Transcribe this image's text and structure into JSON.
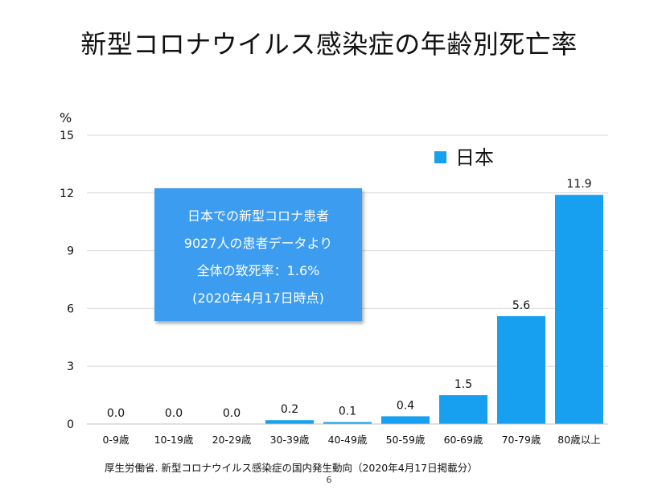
{
  "title": "新型コロナウイルス感染症の年齢別死亡率",
  "source": "厚生労働省. 新型コロナウイルス感染症の国内発生動向（2020年4月17日掲載分）",
  "page_number": "6",
  "note": {
    "lines": [
      "日本での新型コロナ患者",
      "9027人の患者データより",
      "全体の致死率：1.6%",
      "(2020年4月17日時点)"
    ]
  },
  "colors": {
    "bar": "#16a0ef",
    "note_bg": "#3c9cf0"
  },
  "chart_data": {
    "type": "bar",
    "title": "",
    "ylabel": "%",
    "xlabel": "",
    "ylim": [
      0,
      15
    ],
    "yticks": [
      0,
      3,
      6,
      9,
      12,
      15
    ],
    "grid": true,
    "legend_position": "top-right",
    "categories": [
      "0-9歳",
      "10-19歳",
      "20-29歳",
      "30-39歳",
      "40-49歳",
      "50-59歳",
      "60-69歳",
      "70-79歳",
      "80歳以上"
    ],
    "series": [
      {
        "name": "日本",
        "values": [
          0.0,
          0.0,
          0.0,
          0.2,
          0.1,
          0.4,
          1.5,
          5.6,
          11.9
        ],
        "labels": [
          "0.0",
          "0.0",
          "0.0",
          "0.2",
          "0.1",
          "0.4",
          "1.5",
          "5.6",
          "11.9"
        ]
      }
    ]
  }
}
